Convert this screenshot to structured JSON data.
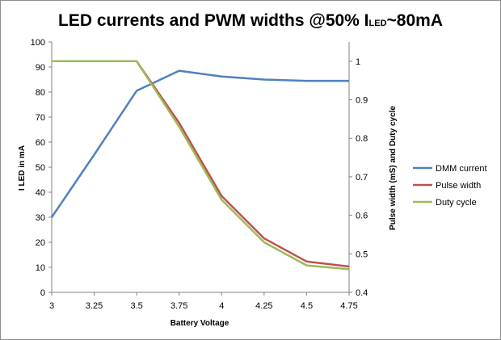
{
  "chart_data": {
    "type": "line",
    "title": {
      "main": "LED currents and PWM widths @50% I",
      "subscript": "LED",
      "tail": "~80mA"
    },
    "xlabel": "Battery Voltage",
    "ylabel": "I LED in mA",
    "y2label": "Pulse width (mS) and Duty cycle",
    "x": [
      3,
      3.25,
      3.5,
      3.75,
      4,
      4.25,
      4.5,
      4.75
    ],
    "x_tick_labels": [
      "3",
      "3.25",
      "3.5",
      "3.75",
      "4",
      "4.25",
      "4.5",
      "4.75"
    ],
    "ylim": [
      0,
      100
    ],
    "y_ticks": [
      0,
      10,
      20,
      30,
      40,
      50,
      60,
      70,
      80,
      90,
      100
    ],
    "y2lim": [
      0.4,
      1.05
    ],
    "y2_ticks": [
      "0.4",
      "0.5",
      "0.6",
      "0.7",
      "0.8",
      "0.9",
      "1"
    ],
    "series": [
      {
        "name": "DMM current",
        "axis": "left",
        "color": "#4f81bd",
        "values": [
          30,
          55,
          80.5,
          88.5,
          86.2,
          85,
          84.5,
          84.5
        ]
      },
      {
        "name": "Pulse width",
        "axis": "right",
        "color": "#c0504d",
        "values": [
          1,
          1,
          1,
          0.84,
          0.65,
          0.54,
          0.48,
          0.467
        ]
      },
      {
        "name": "Duty cycle",
        "axis": "right",
        "color": "#9bbb59",
        "values": [
          1,
          1,
          1,
          0.83,
          0.64,
          0.53,
          0.47,
          0.46
        ]
      }
    ],
    "legend_position": "right",
    "grid": false
  }
}
